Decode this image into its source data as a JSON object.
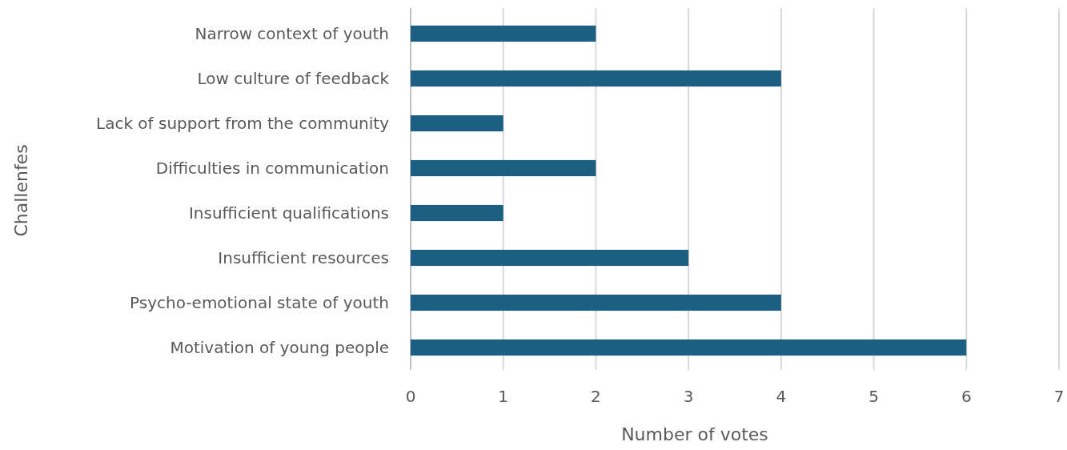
{
  "chart_data": {
    "type": "bar",
    "orientation": "horizontal",
    "xlabel": "Number of votes",
    "ylabel": "Challenfes",
    "categories": [
      "Narrow context of youth",
      "Low culture of feedback",
      "Lack of support from the community",
      "Difficulties in communication",
      "Insufficient qualifications",
      "Insufficient resources",
      "Psycho-emotional state of youth",
      "Motivation of young people"
    ],
    "values": [
      2,
      4,
      1,
      2,
      1,
      3,
      4,
      6
    ],
    "color": "#1b5f82",
    "xlim": [
      0,
      7
    ],
    "xticks": [
      0,
      1,
      2,
      3,
      4,
      5,
      6,
      7
    ],
    "grid": "x"
  }
}
